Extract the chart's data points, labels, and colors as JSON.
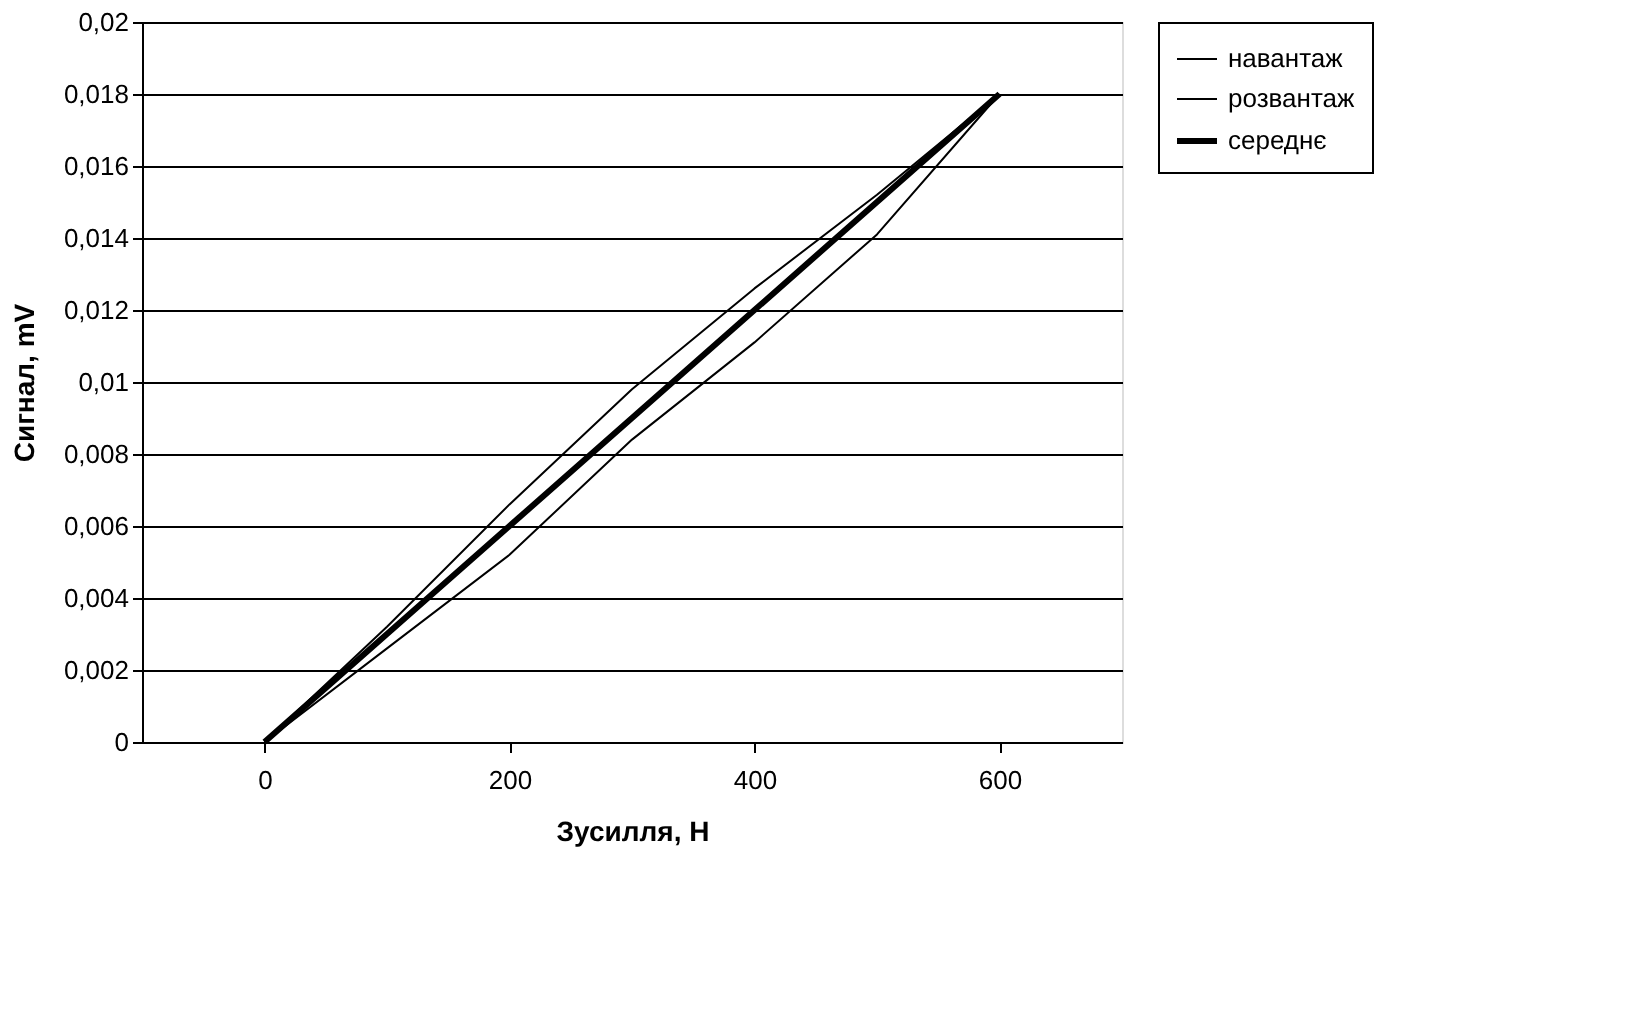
{
  "chart_data": {
    "type": "line",
    "xlabel": "Зусилля, Н",
    "ylabel": "Сигнал, mV",
    "x": [
      0,
      100,
      200,
      300,
      400,
      500,
      600
    ],
    "series": [
      {
        "name": "навантаж",
        "color": "#000000",
        "values": [
          0,
          0.0026,
          0.0052,
          0.0084,
          0.0111,
          0.0141,
          0.018
        ]
      },
      {
        "name": "розвантаж",
        "color": "#000000",
        "values": [
          0,
          0.0032,
          0.0066,
          0.0098,
          0.0126,
          0.0152,
          0.018
        ]
      },
      {
        "name": "середнє",
        "color": "#000000",
        "values": [
          0,
          0.003,
          0.006,
          0.009,
          0.012,
          0.015,
          0.018
        ]
      }
    ],
    "xlim": [
      -100,
      700
    ],
    "xticks": [
      0,
      200,
      400,
      600
    ],
    "ylim": [
      0,
      0.02
    ],
    "yticks": [
      {
        "value": 0,
        "label": "0"
      },
      {
        "value": 0.002,
        "label": "0,002"
      },
      {
        "value": 0.004,
        "label": "0,004"
      },
      {
        "value": 0.006,
        "label": "0,006"
      },
      {
        "value": 0.008,
        "label": "0,008"
      },
      {
        "value": 0.01,
        "label": "0,01"
      },
      {
        "value": 0.012,
        "label": "0,012"
      },
      {
        "value": 0.014,
        "label": "0,014"
      },
      {
        "value": 0.016,
        "label": "0,016"
      },
      {
        "value": 0.018,
        "label": "0,018"
      },
      {
        "value": 0.02,
        "label": "0,02"
      }
    ],
    "grid": "y",
    "legend": "right",
    "marker": "none",
    "line_style": "solid"
  }
}
